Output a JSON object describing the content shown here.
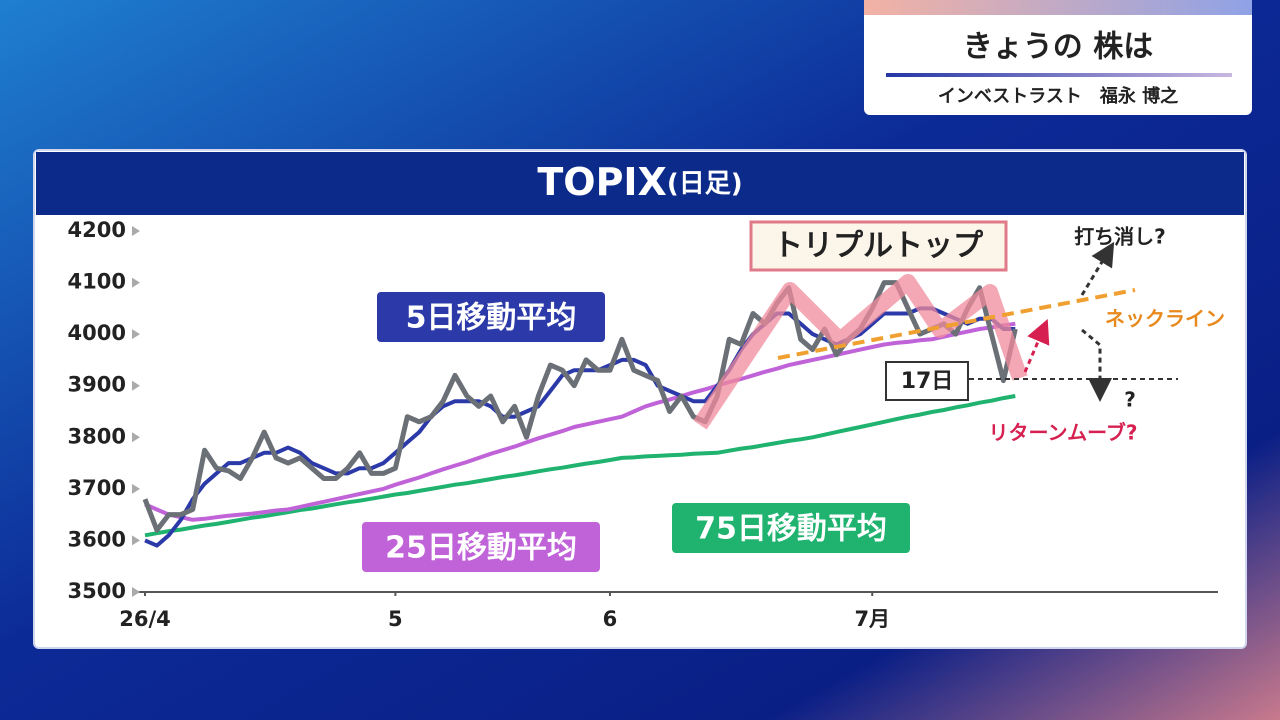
{
  "header": {
    "title": "きょうの 株は",
    "presenter": "インベストラスト　福永 博之"
  },
  "chart_data": {
    "type": "line",
    "title": "TOPIX",
    "subtitle": "(日足)",
    "x": [
      0,
      1,
      2,
      3,
      4,
      5,
      6,
      7,
      8,
      9,
      10,
      11,
      12,
      13,
      14,
      15,
      16,
      17,
      18,
      19,
      20,
      21,
      22,
      23,
      24,
      25,
      26,
      27,
      28,
      29,
      30,
      31,
      32,
      33,
      34,
      35,
      36,
      37,
      38,
      39,
      40,
      41,
      42,
      43,
      44,
      45,
      46,
      47,
      48,
      49,
      50,
      51,
      52,
      53,
      54,
      55,
      56,
      57,
      58,
      59,
      60,
      61,
      62,
      63,
      64,
      65,
      66,
      67,
      68,
      69,
      70,
      71,
      72,
      73
    ],
    "xlim": [
      0,
      90
    ],
    "xticks": [
      {
        "value": 0,
        "label": "26/4"
      },
      {
        "value": 21,
        "label": "5"
      },
      {
        "value": 39,
        "label": "6"
      },
      {
        "value": 61,
        "label": "7月"
      }
    ],
    "ylim": [
      3500,
      4200
    ],
    "yticks": [
      3500,
      3600,
      3700,
      3800,
      3900,
      4000,
      4100,
      4200
    ],
    "series": [
      {
        "color": "#6b7077",
        "values": [
          3680,
          3620,
          3650,
          3650,
          3660,
          3775,
          3740,
          3735,
          3720,
          3760,
          3810,
          3760,
          3750,
          3760,
          3740,
          3720,
          3720,
          3740,
          3770,
          3730,
          3730,
          3740,
          3840,
          3830,
          3840,
          3870,
          3920,
          3880,
          3860,
          3880,
          3830,
          3860,
          3800,
          3880,
          3940,
          3930,
          3900,
          3950,
          3930,
          3930,
          3990,
          3930,
          3920,
          3910,
          3850,
          3880,
          3840,
          3830,
          3880,
          3990,
          3980,
          4040,
          4020,
          4060,
          4090,
          3990,
          3970,
          4010,
          3960,
          3990,
          4010,
          4050,
          4100,
          4100,
          4050,
          4000,
          4010,
          4020,
          4000,
          4050,
          4090,
          4000,
          3910,
          4010
        ]
      },
      {
        "name": "5日移動平均",
        "color": "#2b3aa8",
        "values": [
          3600,
          3590,
          3610,
          3640,
          3680,
          3710,
          3730,
          3750,
          3750,
          3760,
          3770,
          3770,
          3780,
          3770,
          3750,
          3740,
          3730,
          3730,
          3740,
          3740,
          3750,
          3770,
          3790,
          3810,
          3840,
          3860,
          3870,
          3870,
          3870,
          3860,
          3840,
          3840,
          3850,
          3860,
          3890,
          3920,
          3930,
          3930,
          3930,
          3940,
          3950,
          3950,
          3940,
          3900,
          3890,
          3880,
          3870,
          3870,
          3900,
          3930,
          3970,
          4000,
          4020,
          4040,
          4040,
          4020,
          4000,
          3990,
          3980,
          3990,
          4000,
          4020,
          4040,
          4040,
          4040,
          4050,
          4050,
          4040,
          4030,
          4020,
          4030,
          4030,
          4010,
          4010
        ]
      },
      {
        "name": "25日移動平均",
        "color": "#c063d8",
        "values": [
          3670,
          3660,
          3650,
          3645,
          3640,
          3642,
          3645,
          3648,
          3650,
          3652,
          3655,
          3658,
          3660,
          3665,
          3670,
          3675,
          3680,
          3685,
          3690,
          3695,
          3700,
          3708,
          3715,
          3722,
          3730,
          3738,
          3745,
          3752,
          3760,
          3768,
          3775,
          3782,
          3790,
          3798,
          3805,
          3812,
          3820,
          3825,
          3830,
          3835,
          3840,
          3850,
          3860,
          3867,
          3873,
          3880,
          3887,
          3893,
          3900,
          3907,
          3913,
          3920,
          3927,
          3933,
          3940,
          3945,
          3950,
          3955,
          3960,
          3965,
          3970,
          3975,
          3980,
          3983,
          3985,
          3988,
          3990,
          3995,
          4000,
          4005,
          4010,
          4013,
          4017,
          4020
        ]
      },
      {
        "name": "75日移動平均",
        "color": "#1fb36f",
        "values": [
          3610,
          3614,
          3618,
          3621,
          3625,
          3629,
          3632,
          3636,
          3640,
          3644,
          3647,
          3651,
          3655,
          3659,
          3662,
          3666,
          3670,
          3674,
          3677,
          3681,
          3685,
          3689,
          3692,
          3696,
          3700,
          3704,
          3708,
          3711,
          3715,
          3719,
          3723,
          3726,
          3730,
          3734,
          3738,
          3741,
          3745,
          3749,
          3752,
          3756,
          3760,
          3761,
          3763,
          3764,
          3765,
          3766,
          3768,
          3769,
          3770,
          3774,
          3778,
          3781,
          3785,
          3789,
          3793,
          3796,
          3800,
          3805,
          3810,
          3815,
          3820,
          3825,
          3830,
          3835,
          3840,
          3844,
          3849,
          3853,
          3858,
          3862,
          3867,
          3871,
          3876,
          3880
        ]
      }
    ],
    "annotations": [
      "トリプルトップ",
      "打ち消し?",
      "ネックライン",
      "17日",
      "?",
      "リターンムーブ?"
    ]
  }
}
